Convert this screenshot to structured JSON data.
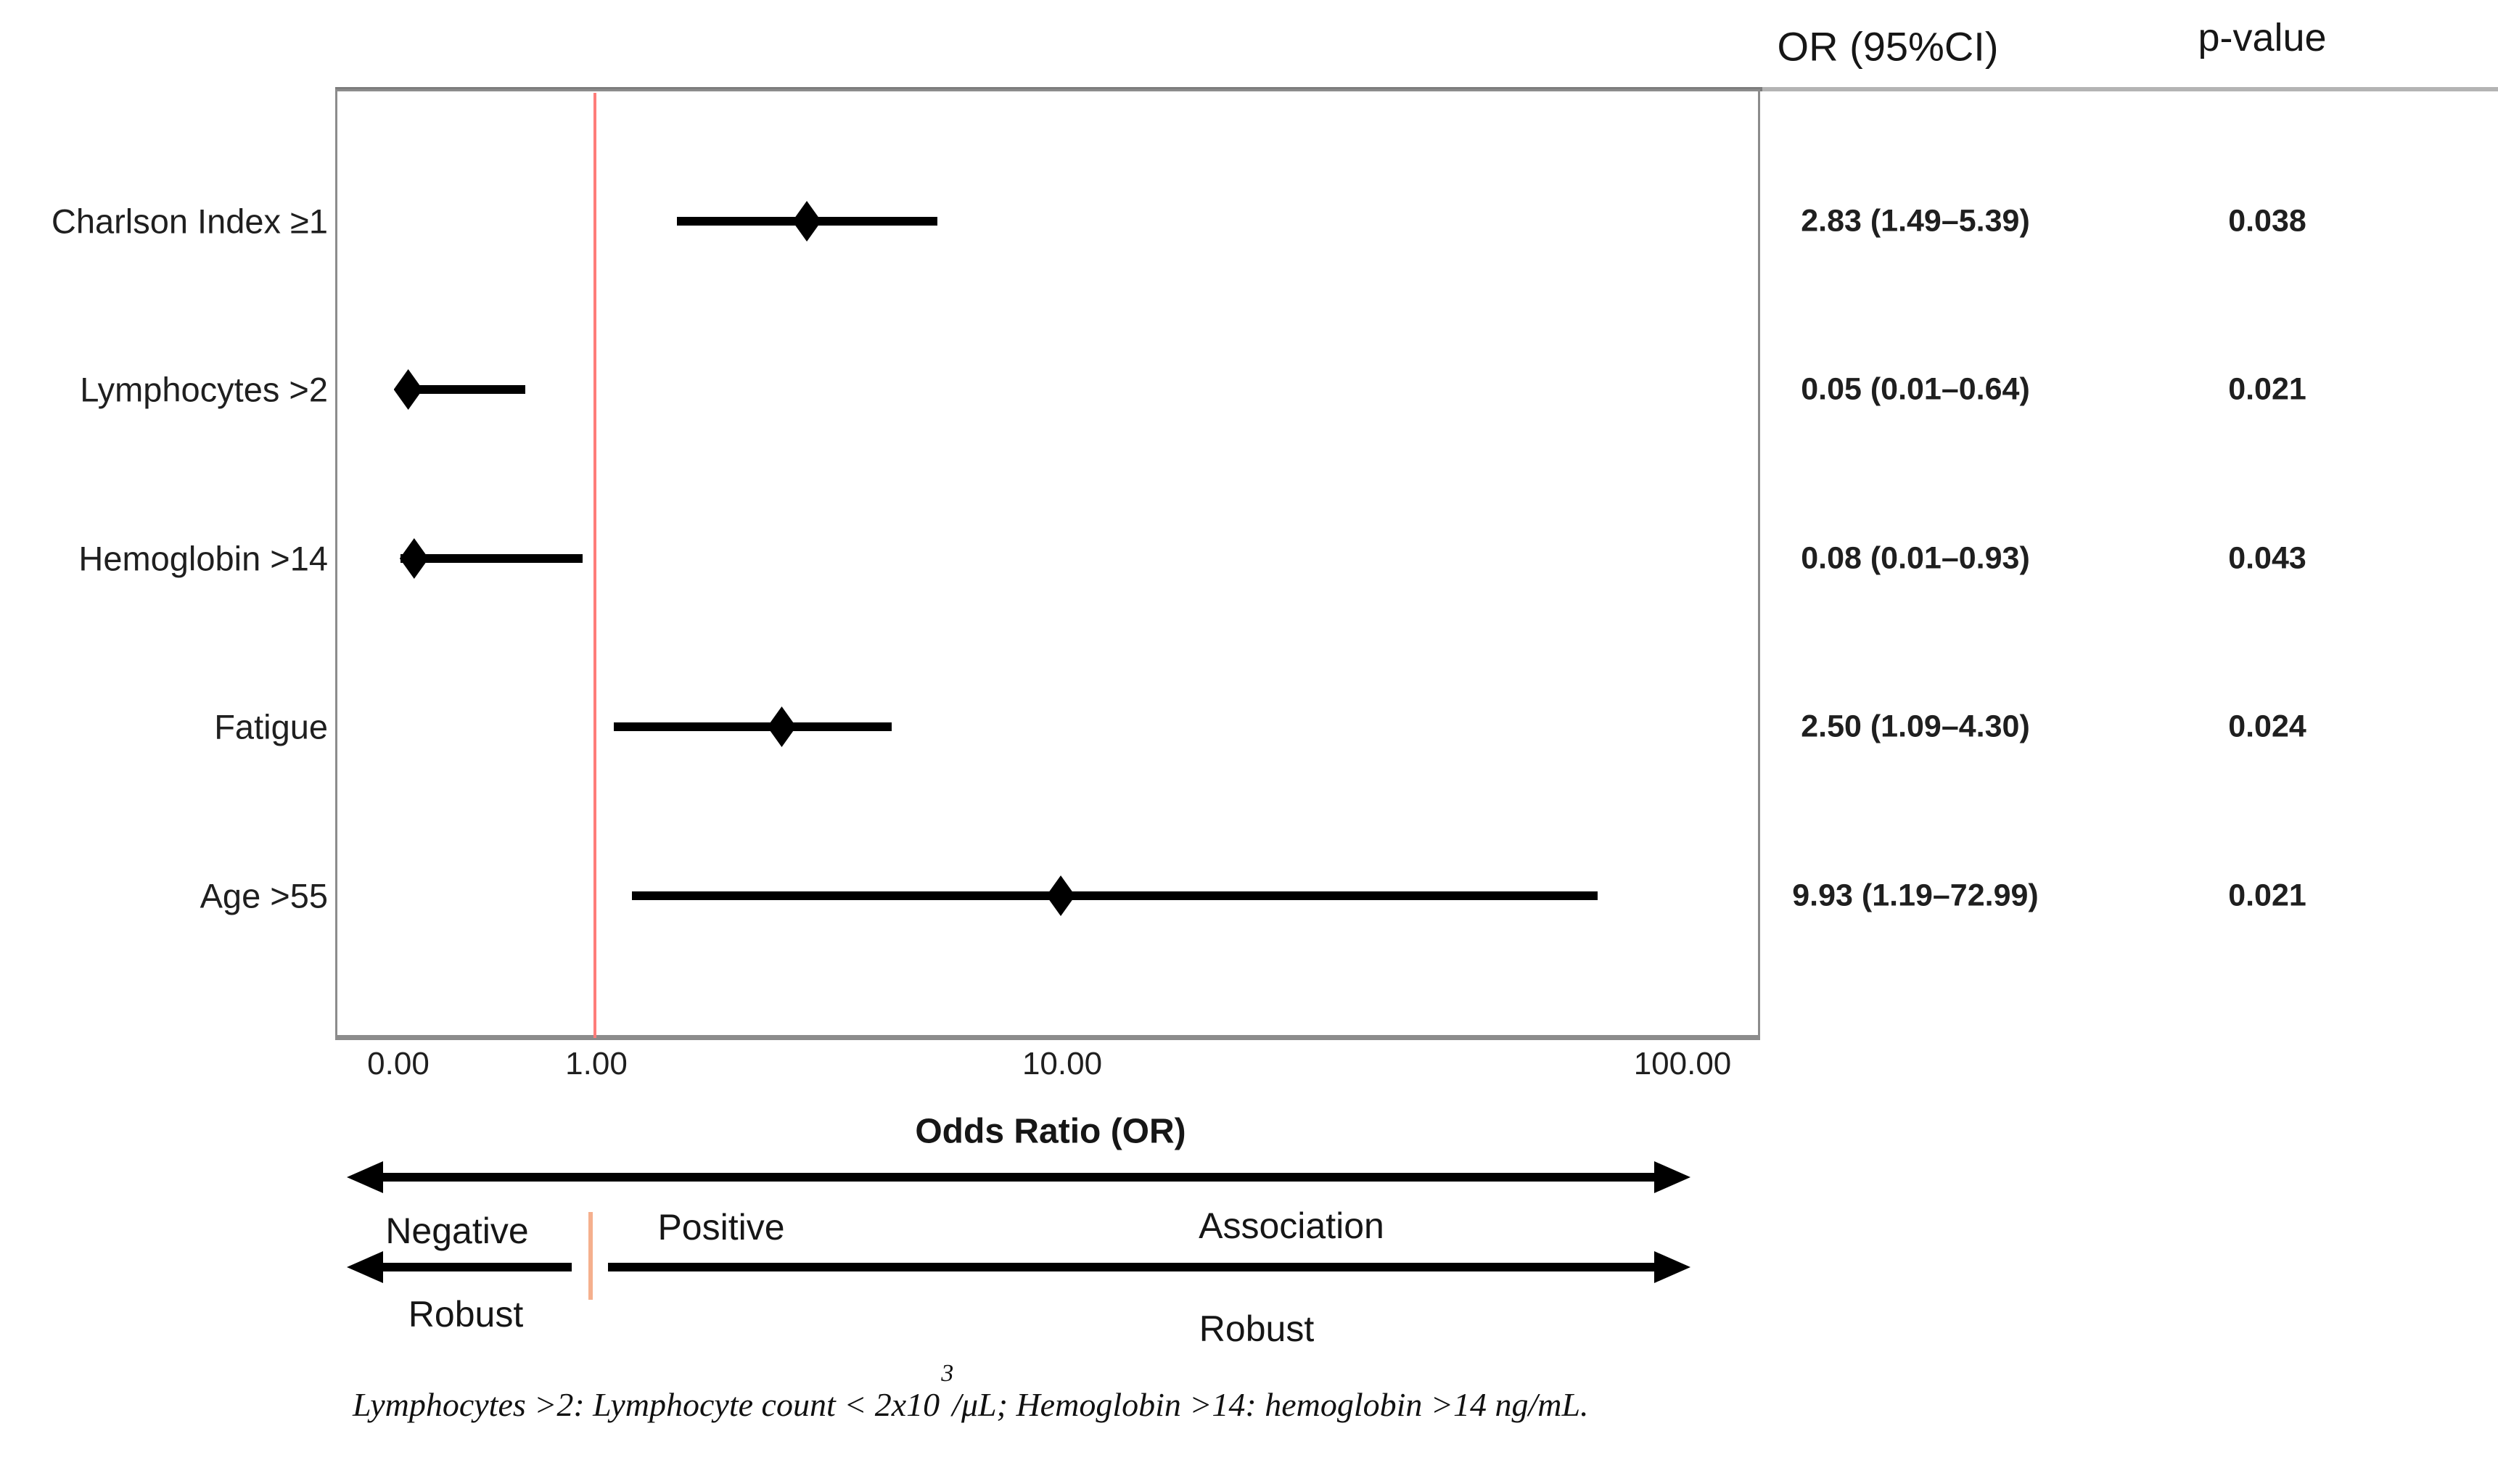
{
  "table": {
    "or_header": "OR (95%CI)",
    "p_header": "p-value"
  },
  "chart_data": {
    "type": "forest",
    "title": "",
    "xlabel": "Odds Ratio (OR)",
    "x_tick_labels": [
      "0.00",
      "1.00",
      "10.00",
      "100.00"
    ],
    "axis_scale": "log-like (linear 0-1, log 1-100)",
    "reference_value": 1.0,
    "grid": false,
    "rows": [
      {
        "label": "Charlson Index ≥1",
        "or": 2.83,
        "ci_low": 1.49,
        "ci_high": 5.39,
        "or_ci_text": "2.83 (1.49–5.39)",
        "p_value": "0.038"
      },
      {
        "label": "Lymphocytes >2",
        "or": 0.05,
        "ci_low": 0.01,
        "ci_high": 0.64,
        "or_ci_text": "0.05 (0.01–0.64)",
        "p_value": "0.021"
      },
      {
        "label": "Hemoglobin >14",
        "or": 0.08,
        "ci_low": 0.01,
        "ci_high": 0.93,
        "or_ci_text": "0.08 (0.01–0.93)",
        "p_value": "0.043"
      },
      {
        "label": "Fatigue",
        "or": 2.5,
        "ci_low": 1.09,
        "ci_high": 4.3,
        "or_ci_text": "2.50 (1.09–4.30)",
        "p_value": "0.024"
      },
      {
        "label": "Age >55",
        "or": 9.93,
        "ci_low": 1.19,
        "ci_high": 72.99,
        "or_ci_text": "9.93 (1.19–72.99)",
        "p_value": "0.021"
      }
    ]
  },
  "annotations": {
    "direction_left": "Negative",
    "direction_right": "Positive",
    "direction_scope": "Association",
    "robust_left": "Robust",
    "robust_right": "Robust"
  },
  "footnote": {
    "part1": "Lymphocytes >2: Lymphocyte count < 2x10",
    "sup": "3",
    "part2": "/μL; Hemoglobin >14: hemoglobin >14 ng/mL."
  },
  "colors": {
    "reference_line": "#fe7d7a",
    "annotation_tick": "#f5b08e",
    "plot_border": "#8c8c8c",
    "marker": "#000000",
    "text": "#1f1f1f"
  }
}
